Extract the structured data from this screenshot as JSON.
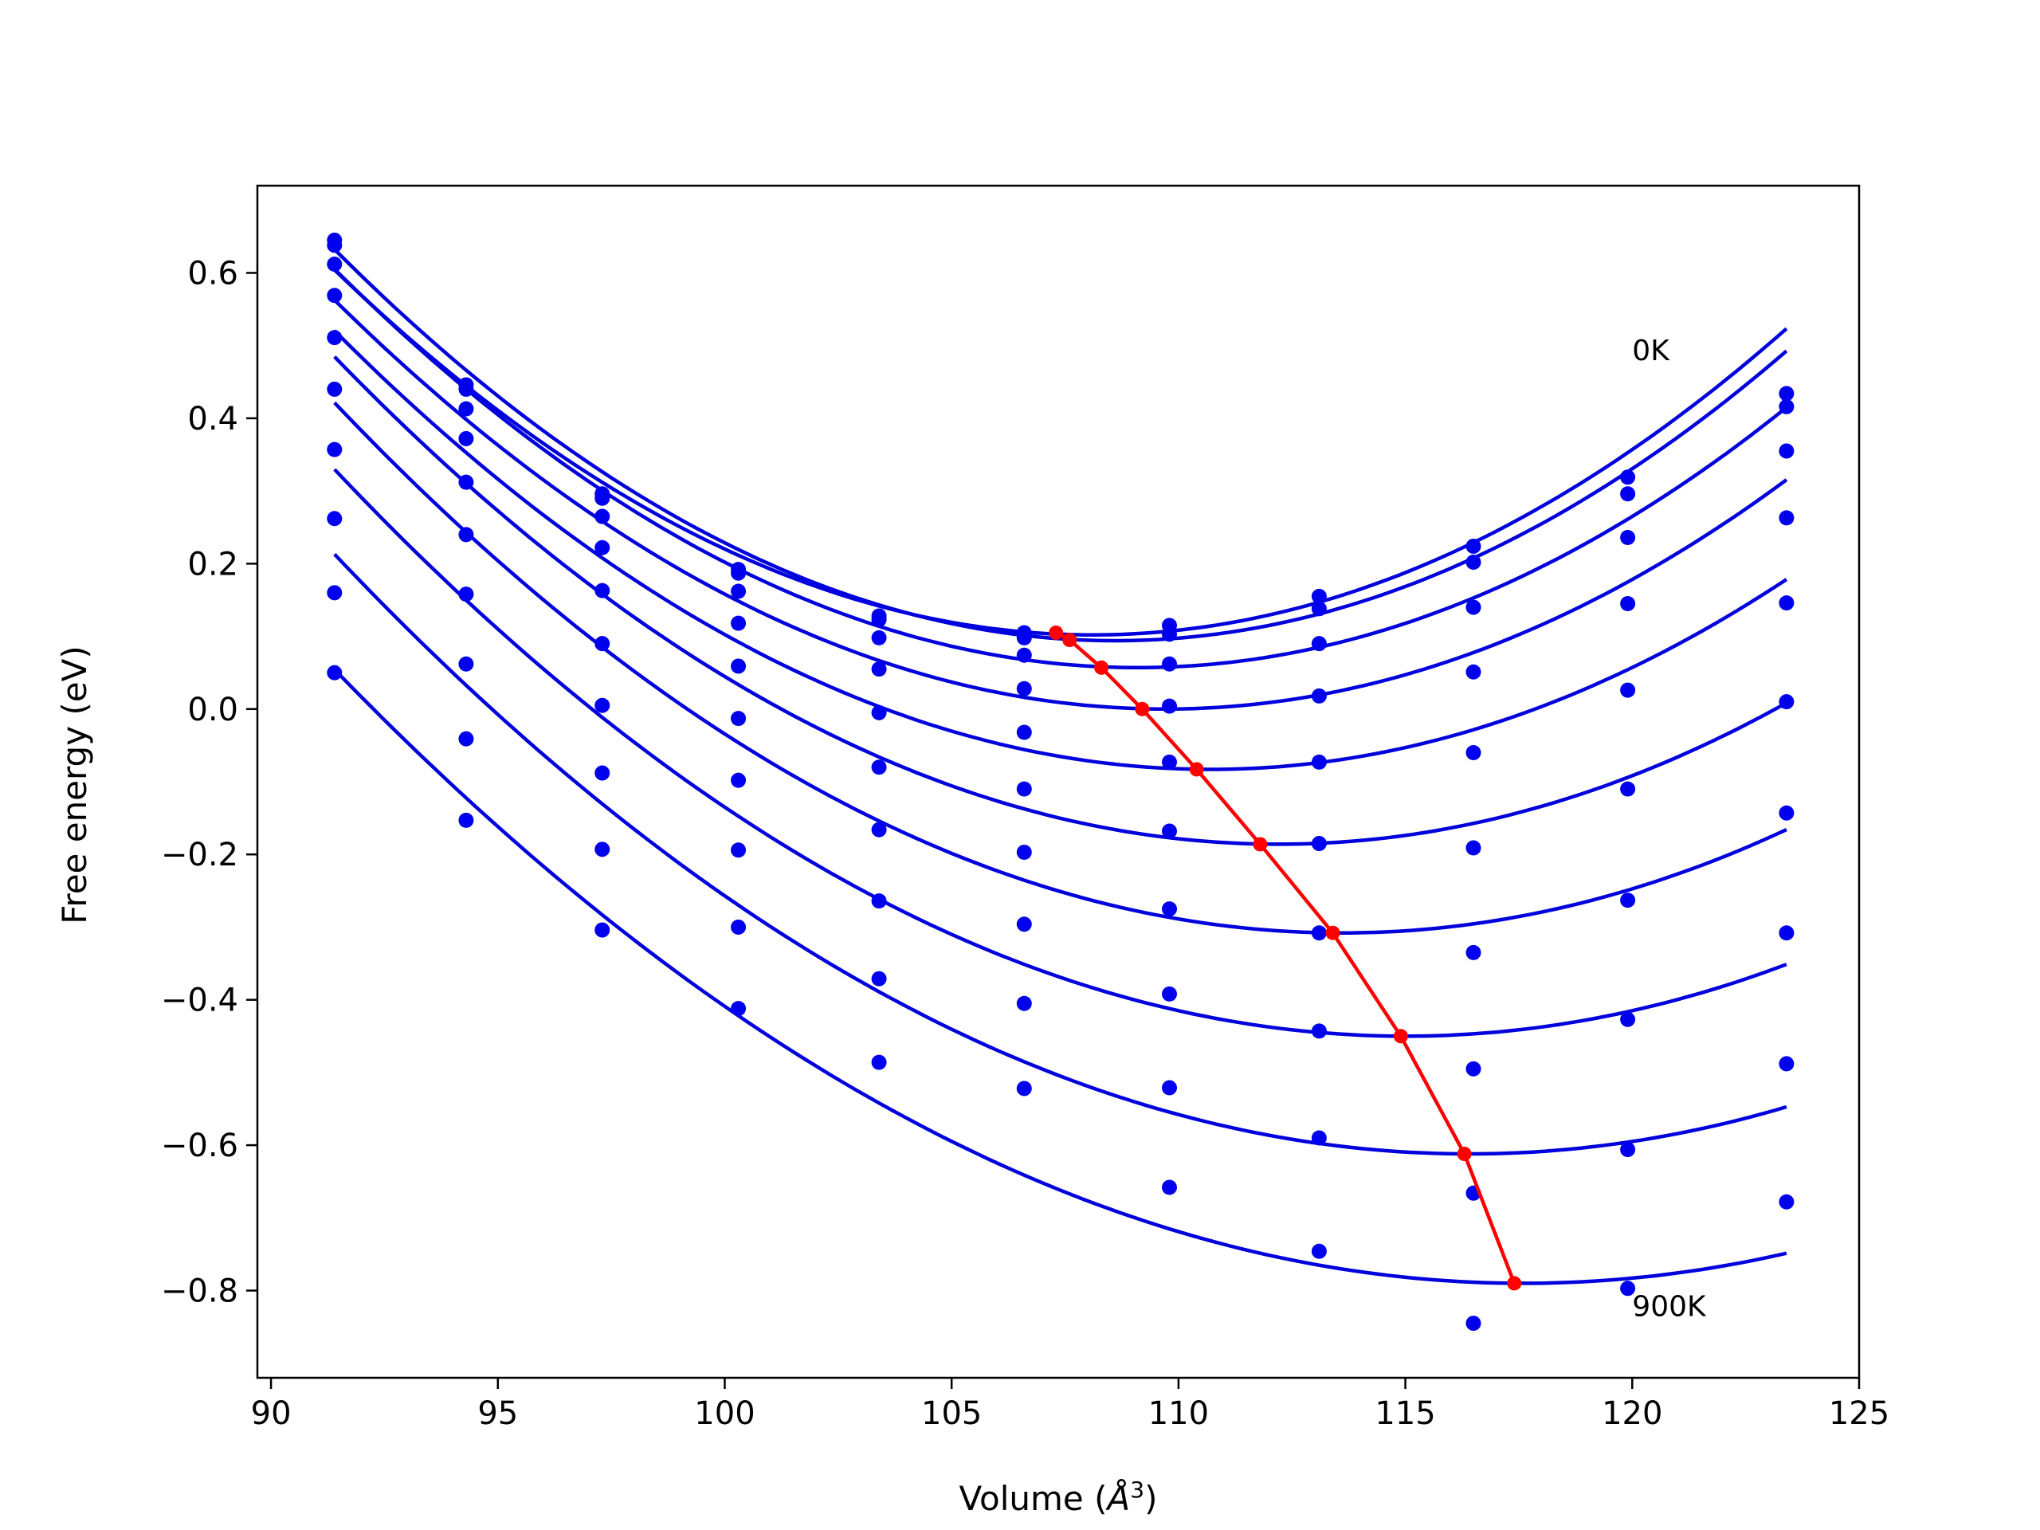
{
  "chart_data": {
    "type": "scatter",
    "title": "",
    "xlabel": "Volume (Å³)",
    "xlabel_base": "Volume (",
    "xlabel_unit": "Å",
    "xlabel_sup": "3",
    "xlabel_end": ")",
    "ylabel": "Free energy (eV)",
    "xlim": [
      89.7,
      125
    ],
    "ylim": [
      -0.92,
      0.72
    ],
    "xticks": [
      90,
      95,
      100,
      105,
      110,
      115,
      120,
      125
    ],
    "xtick_labels": [
      "90",
      "95",
      "100",
      "105",
      "110",
      "115",
      "120",
      "125"
    ],
    "yticks": [
      -0.8,
      -0.6,
      -0.4,
      -0.2,
      0.0,
      0.2,
      0.4,
      0.6
    ],
    "ytick_labels": [
      "−0.8",
      "−0.6",
      "−0.4",
      "−0.2",
      "0.0",
      "0.2",
      "0.4",
      "0.6"
    ],
    "grid": false,
    "colors": {
      "points": "#0000ee",
      "fit": "#0000dd",
      "minima": "#ff0000",
      "frame": "#000000"
    },
    "annotations": [
      {
        "text": "0K",
        "x": 120.0,
        "y": 0.48
      },
      {
        "text": "900K",
        "x": 120.0,
        "y": -0.835
      }
    ],
    "x": [
      91.4,
      94.3,
      97.3,
      100.3,
      103.4,
      106.6,
      109.8,
      113.1,
      116.5,
      119.9,
      123.4
    ],
    "fit_range": [
      91.4,
      123.4
    ],
    "series": [
      {
        "points": [
          0.645,
          0.446,
          0.296,
          0.192,
          0.128,
          0.105,
          0.115,
          0.155,
          0.224,
          0.319,
          0.434
        ],
        "fit": {
          "a": 0.0018,
          "v0": 108.1,
          "e0": 0.102
        }
      },
      {
        "points": [
          0.638,
          0.44,
          0.29,
          0.187,
          0.123,
          0.098,
          0.103,
          0.138,
          0.202,
          0.296,
          0.416
        ],
        "fit": {
          "a": 0.00182,
          "v0": 108.6,
          "e0": 0.094
        }
      },
      {
        "points": [
          0.612,
          0.413,
          0.265,
          0.162,
          0.098,
          0.074,
          0.062,
          0.09,
          0.14,
          0.236,
          0.355
        ],
        "fit": {
          "a": 0.00175,
          "v0": 109.1,
          "e0": 0.057
        }
      },
      {
        "points": [
          0.569,
          0.372,
          0.222,
          0.118,
          0.055,
          0.028,
          0.004,
          0.018,
          0.051,
          0.026,
          0.263
        ],
        "fit": {
          "a": 0.00168,
          "v0": 109.7,
          "e0": 0.0
        }
      },
      {
        "points": [
          0.511,
          0.312,
          0.163,
          0.059,
          -0.005,
          -0.032,
          -0.073,
          -0.073,
          -0.06,
          0.145,
          0.146
        ],
        "fit": {
          "a": 0.00162,
          "v0": 110.7,
          "e0": -0.083
        }
      },
      {
        "points": [
          0.44,
          0.24,
          0.09,
          -0.013,
          -0.08,
          -0.11,
          -0.168,
          -0.185,
          -0.191,
          -0.11,
          0.01
        ],
        "fit": {
          "a": 0.00155,
          "v0": 112.2,
          "e0": -0.186
        }
      },
      {
        "points": [
          0.357,
          0.158,
          0.005,
          -0.098,
          -0.166,
          -0.197,
          -0.275,
          -0.308,
          -0.335,
          -0.263,
          -0.143
        ],
        "fit": {
          "a": 0.00148,
          "v0": 113.6,
          "e0": -0.308
        }
      },
      {
        "points": [
          0.262,
          0.062,
          -0.088,
          -0.194,
          -0.264,
          -0.296,
          -0.392,
          -0.443,
          -0.495,
          -0.427,
          -0.308
        ],
        "fit": {
          "a": 0.0014,
          "v0": 115.0,
          "e0": -0.45
        }
      },
      {
        "points": [
          0.16,
          -0.041,
          -0.193,
          -0.3,
          -0.371,
          -0.405,
          -0.521,
          -0.59,
          -0.666,
          -0.606,
          -0.488
        ],
        "fit": {
          "a": 0.00132,
          "v0": 116.4,
          "e0": -0.612
        }
      },
      {
        "points": [
          0.05,
          -0.153,
          -0.304,
          -0.412,
          -0.486,
          -0.522,
          -0.658,
          -0.746,
          -0.845,
          -0.797,
          -0.678
        ],
        "fit": {
          "a": 0.00123,
          "v0": 117.6,
          "e0": -0.79
        }
      }
    ],
    "minima_line": {
      "x": [
        107.3,
        107.6,
        108.3,
        109.2,
        110.4,
        111.8,
        113.4,
        114.9,
        116.3,
        117.4
      ],
      "y": [
        0.105,
        0.095,
        0.057,
        0.0,
        -0.083,
        -0.186,
        -0.308,
        -0.45,
        -0.612,
        -0.79
      ]
    }
  }
}
